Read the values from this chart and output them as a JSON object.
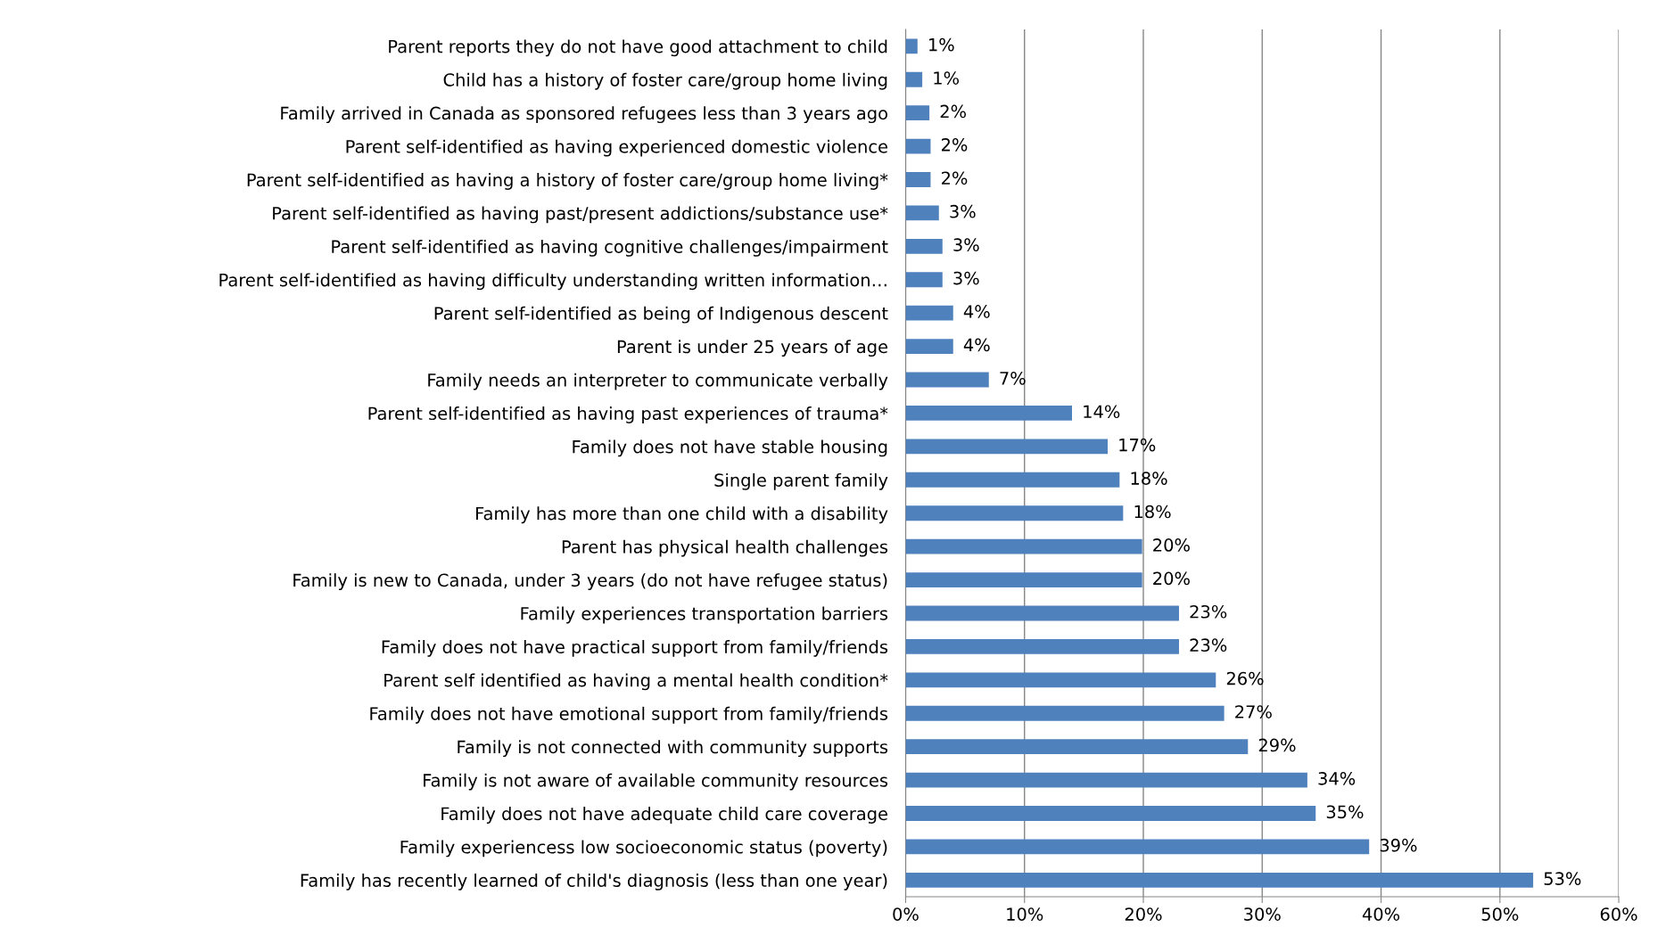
{
  "chart_data": {
    "type": "bar",
    "orientation": "horizontal",
    "color": "#4f81bd",
    "categories": [
      "Parent reports they do not have good attachment to child",
      "Child has a history of foster care/group home living",
      "Family arrived in Canada as sponsored refugees less than 3 years ago",
      "Parent self-identified as having experienced domestic violence",
      "Parent self-identified as having a history of foster care/group home living*",
      "Parent self-identified as having past/present addictions/substance use*",
      "Parent self-identified as having cognitive challenges/impairment",
      "Parent self-identified as having difficulty understanding written information…",
      "Parent self-identified as being of Indigenous descent",
      "Parent is under 25 years of age",
      "Family needs an interpreter to communicate verbally",
      "Parent self-identified as having past experiences of trauma*",
      "Family does not have stable housing",
      "Single parent family",
      "Family has more than one child with a disability",
      "Parent has physical health challenges",
      "Family is new to Canada, under 3 years (do not have refugee status)",
      "Family experiences transportation barriers",
      "Family does not have practical support from family/friends",
      "Parent self identified as having a mental health condition*",
      "Family does not have emotional support from family/friends",
      "Family is not connected with community supports",
      "Family is not aware of available community resources",
      "Family does not have adequate child care coverage",
      "Family experiencess low socioeconomic status (poverty)",
      "Family has recently learned of child's diagnosis (less than one year)"
    ],
    "values": [
      1.0,
      1.4,
      2.0,
      2.1,
      2.1,
      2.8,
      3.1,
      3.1,
      4.0,
      4.0,
      7.0,
      14.0,
      17.0,
      18.0,
      18.3,
      19.9,
      19.9,
      23.0,
      23.0,
      26.1,
      26.8,
      28.8,
      33.8,
      34.5,
      39.0,
      52.8
    ],
    "value_labels": [
      "1%",
      "1%",
      "2%",
      "2%",
      "2%",
      "3%",
      "3%",
      "3%",
      "4%",
      "4%",
      "7%",
      "14%",
      "17%",
      "18%",
      "18%",
      "20%",
      "20%",
      "23%",
      "23%",
      "26%",
      "27%",
      "29%",
      "34%",
      "35%",
      "39%",
      "53%"
    ],
    "xlim": [
      0,
      60
    ],
    "xticks": [
      {
        "value": 0,
        "label": "0%"
      },
      {
        "value": 10,
        "label": "10%"
      },
      {
        "value": 20,
        "label": "20%"
      },
      {
        "value": 30,
        "label": "30%"
      },
      {
        "value": 40,
        "label": "40%"
      },
      {
        "value": 50,
        "label": "50%"
      },
      {
        "value": 60,
        "label": "60%"
      }
    ],
    "grid": "x",
    "legend": false
  }
}
